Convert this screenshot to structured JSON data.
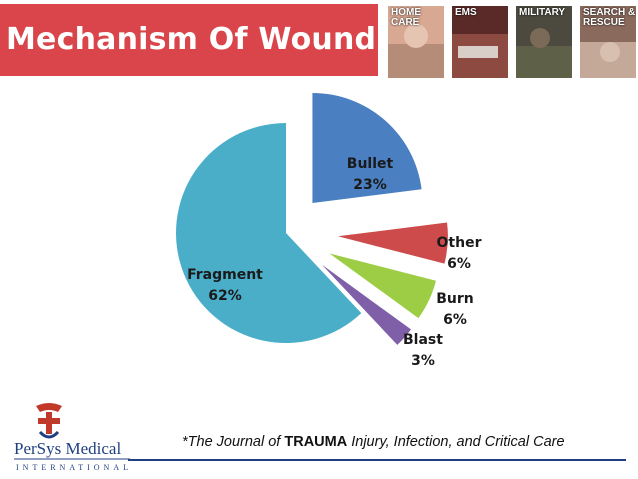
{
  "title": "Mechanism Of Wounding",
  "thumbnails": [
    {
      "label": "HOME\nCARE",
      "color": "#c96a5a"
    },
    {
      "label": "EMS",
      "color": "#7a3a34"
    },
    {
      "label": "MILITARY",
      "color": "#6a6a55"
    },
    {
      "label": "SEARCH &\nRESCUE",
      "color": "#a07a68"
    }
  ],
  "chart_data": {
    "type": "pie",
    "slices": [
      {
        "name": "Bullet",
        "value": 23,
        "label": "23%",
        "color": "#4a7fc1"
      },
      {
        "name": "Other",
        "value": 6,
        "label": "6%",
        "color": "#cd4b4b"
      },
      {
        "name": "Burn",
        "value": 6,
        "label": "6%",
        "color": "#9ccd45"
      },
      {
        "name": "Blast",
        "value": 3,
        "label": "3%",
        "color": "#7f5fa8"
      },
      {
        "name": "Fragment",
        "value": 62,
        "label": "62%",
        "color": "#4aaec8"
      }
    ]
  },
  "logo": {
    "brand": "PerSys Medical",
    "subtitle": "INTERNATIONAL"
  },
  "citation": {
    "prefix": "*The Journal of ",
    "bold": "TRAUMA",
    "suffix": " Injury, Infection, and Critical Care"
  }
}
